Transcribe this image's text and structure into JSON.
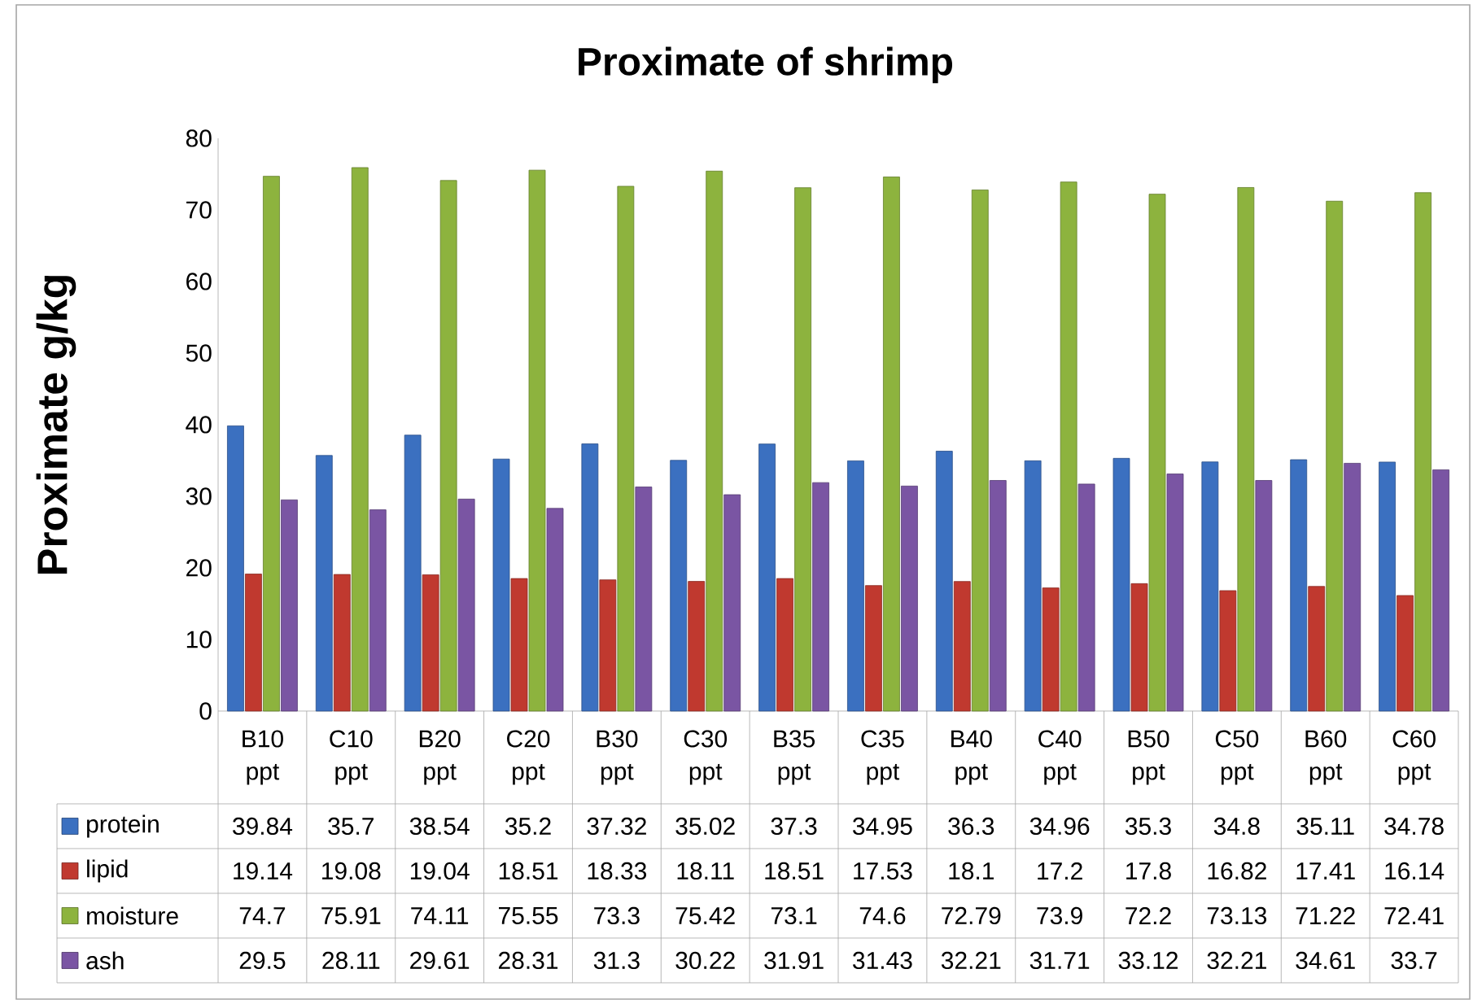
{
  "chart_data": {
    "type": "bar",
    "title": "Proximate of shrimp",
    "ylabel": "Proximate g/kg",
    "categories": [
      "B10 ppt",
      "C10 ppt",
      "B20 ppt",
      "C20 ppt",
      "B30 ppt",
      "C30 ppt",
      "B35 ppt",
      "C35 ppt",
      "B40 ppt",
      "C40 ppt",
      "B50 ppt",
      "C50 ppt",
      "B60 ppt",
      "C60 ppt"
    ],
    "series": [
      {
        "name": "protein",
        "color": "#3b70c0",
        "values": [
          39.84,
          35.7,
          38.54,
          35.2,
          37.32,
          35.02,
          37.3,
          34.95,
          36.3,
          34.96,
          35.3,
          34.8,
          35.11,
          34.78
        ]
      },
      {
        "name": "lipid",
        "color": "#c0392f",
        "values": [
          19.14,
          19.08,
          19.04,
          18.51,
          18.33,
          18.11,
          18.51,
          17.53,
          18.1,
          17.2,
          17.8,
          16.82,
          17.41,
          16.14
        ]
      },
      {
        "name": "moisture",
        "color": "#8db33e",
        "values": [
          74.7,
          75.91,
          74.11,
          75.55,
          73.3,
          75.42,
          73.1,
          74.6,
          72.79,
          73.9,
          72.2,
          73.13,
          71.22,
          72.41
        ]
      },
      {
        "name": "ash",
        "color": "#7a55a3",
        "values": [
          29.5,
          28.11,
          29.61,
          28.31,
          31.3,
          30.22,
          31.91,
          31.43,
          32.21,
          31.71,
          33.12,
          32.21,
          34.61,
          33.7
        ]
      }
    ],
    "ylim": [
      0,
      80
    ],
    "yticks": [
      0,
      10,
      20,
      30,
      40,
      50,
      60,
      70,
      80
    ],
    "data_labels": true,
    "legend": "bottom",
    "grid": false
  }
}
